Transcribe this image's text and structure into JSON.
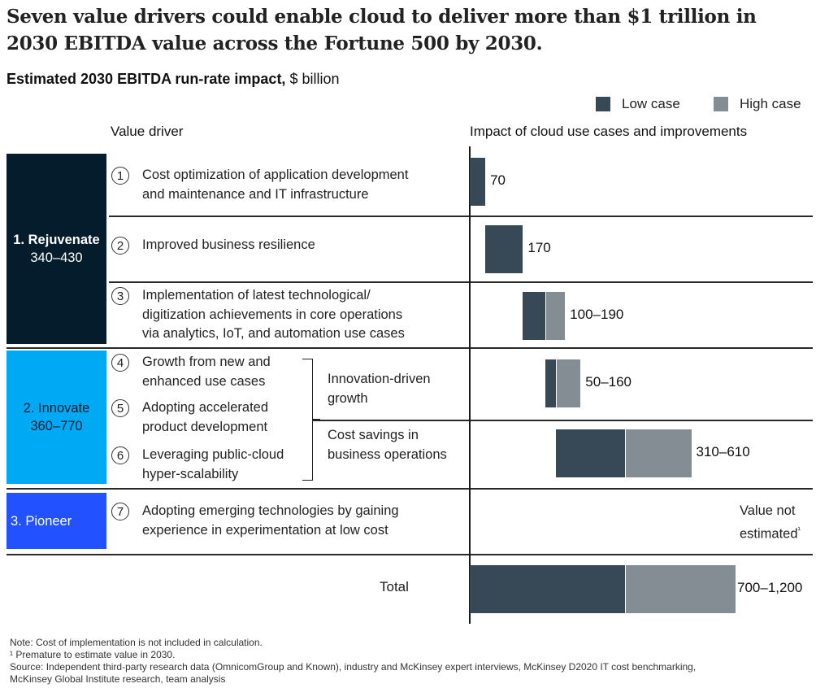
{
  "title": "Seven value drivers could enable cloud to deliver more than $1 trillion in 2030 EBITDA value across the Fortune 500 by 2030.",
  "subtitle": {
    "bold": "Estimated 2030 EBITDA run-rate impact,",
    "regular": " $ billion"
  },
  "legend": [
    {
      "label": "Low case",
      "color": "#374856"
    },
    {
      "label": "High case",
      "color": "#838d93"
    }
  ],
  "headers": {
    "left": "Value driver",
    "right": "Impact of cloud use cases and improvements"
  },
  "groups": [
    {
      "name": "1. Rejuvenate",
      "range": "340–430",
      "color": "#051c2c",
      "text_color": "#ffffff"
    },
    {
      "name": "2. Innovate",
      "range": "360–770",
      "color": "#00a9f4",
      "text_color": "#051c2c"
    },
    {
      "name": "3. Pioneer",
      "range": "",
      "color": "#2251ff",
      "text_color": "#ffffff"
    }
  ],
  "drivers": [
    {
      "num": "1",
      "lines": [
        "Cost optimization of application development",
        "and maintenance and IT infrastructure"
      ]
    },
    {
      "num": "2",
      "lines": [
        "Improved business resilience"
      ]
    },
    {
      "num": "3",
      "lines": [
        "Implementation of latest technological/",
        "digitization achievements in core operations",
        "via analytics, IoT, and automation use cases"
      ]
    },
    {
      "num": "4",
      "lines": [
        "Growth from new and",
        "enhanced use cases"
      ]
    },
    {
      "num": "5",
      "lines": [
        "Adopting accelerated",
        "product development"
      ]
    },
    {
      "num": "6",
      "lines": [
        "Leveraging public-cloud",
        "hyper-scalability"
      ]
    },
    {
      "num": "7",
      "lines": [
        "Adopting emerging technologies by gaining",
        "experience in experimentation at low cost"
      ]
    }
  ],
  "sub_categories": [
    {
      "lines": [
        "Innovation-driven",
        "growth"
      ]
    },
    {
      "lines": [
        "Cost savings in",
        "business operations"
      ]
    }
  ],
  "total_label": "Total",
  "not_estimated": {
    "lines": [
      "Value not",
      "estimated"
    ],
    "footnote_mark": "¹"
  },
  "chart_data": {
    "type": "bar",
    "subtype": "waterfall-range",
    "title": "Estimated 2030 EBITDA run-rate impact, $ billion",
    "xlabel": "Impact of cloud use cases and improvements",
    "unit": "$ billion",
    "xlim": [
      0,
      1200
    ],
    "legend": [
      "Low case",
      "High case"
    ],
    "legend_position": "top-right",
    "rows": [
      {
        "category": "Cost optimization of application development and maintenance and IT infrastructure",
        "start": 0,
        "low": 70,
        "high": 70,
        "label": "70"
      },
      {
        "category": "Improved business resilience",
        "start": 70,
        "low": 170,
        "high": 170,
        "label": "170"
      },
      {
        "category": "Implementation of latest technological/digitization achievements",
        "start": 240,
        "low": 100,
        "high": 190,
        "label": "100–190"
      },
      {
        "category": "Innovation-driven growth",
        "start": 340,
        "low": 50,
        "high": 160,
        "label": "50–160"
      },
      {
        "category": "Cost savings in business operations",
        "start": 390,
        "low": 310,
        "high": 610,
        "label": "310–610"
      },
      {
        "category": "Adopting emerging technologies",
        "start": null,
        "low": null,
        "high": null,
        "label": "Value not estimated¹"
      },
      {
        "category": "Total",
        "start": 0,
        "low": 700,
        "high": 1200,
        "label": "700–1,200"
      }
    ]
  },
  "footnotes": [
    "Note: Cost of implementation is not included in calculation.",
    "¹ Premature to estimate value in 2030.",
    "Source: Independent third-party research data (OmnicomGroup and Known), industry and McKinsey expert interviews, McKinsey D2020 IT cost benchmarking,",
    "McKinsey Global Institute research, team analysis"
  ]
}
